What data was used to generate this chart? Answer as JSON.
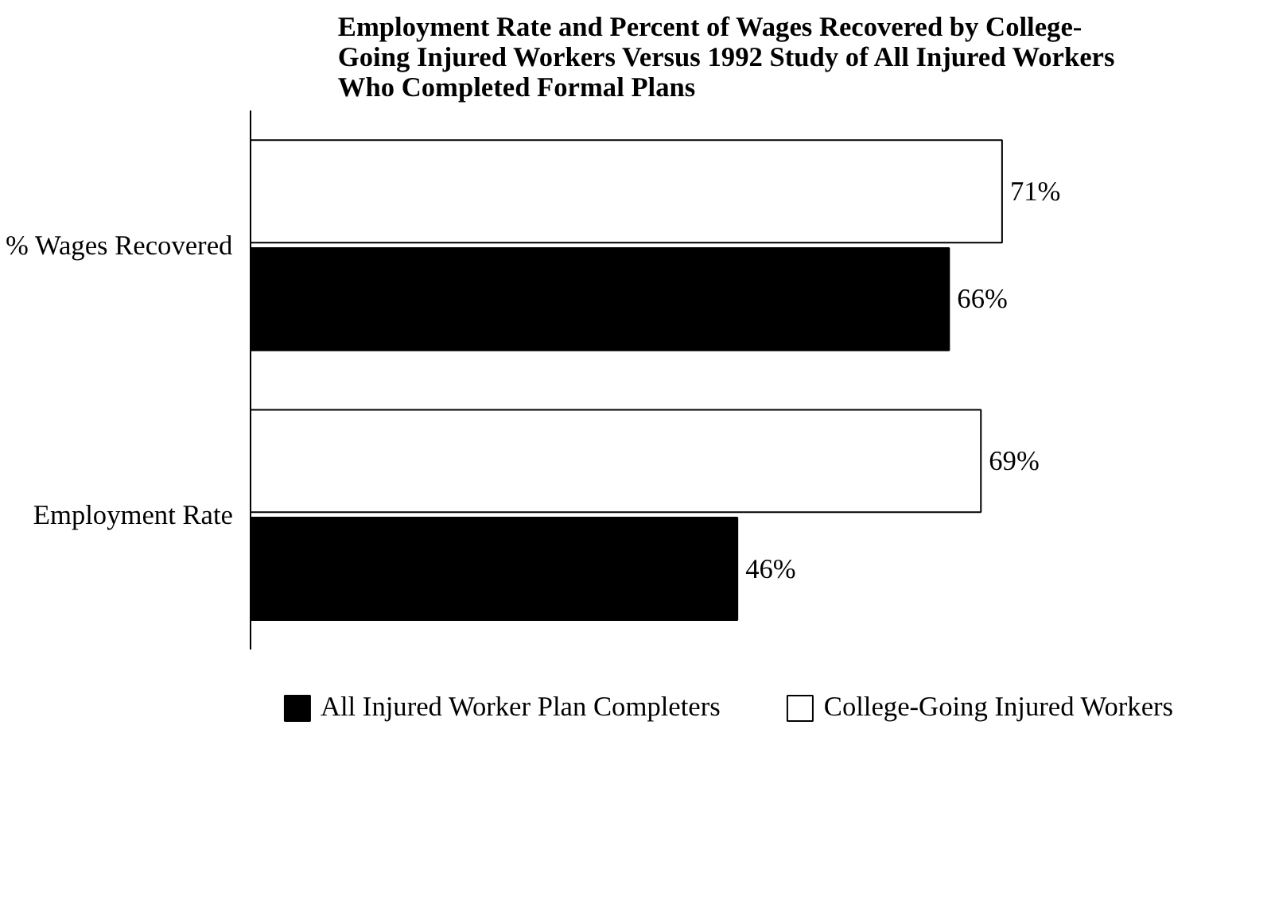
{
  "chart_data": {
    "type": "bar",
    "orientation": "horizontal",
    "title": "Employment Rate and Percent of Wages Recovered by College-Going Injured Workers Versus 1992 Study of All Injured Workers Who Completed Formal Plans",
    "categories": [
      "% Wages Recovered",
      "Employment Rate"
    ],
    "series": [
      {
        "name": "All Injured Worker Plan Completers",
        "color": "#000000",
        "values": [
          66,
          46
        ],
        "value_labels": [
          "66%",
          "46%"
        ]
      },
      {
        "name": "College-Going Injured Workers",
        "color": "#ffffff",
        "values": [
          71,
          69
        ],
        "value_labels": [
          "71%",
          "69%"
        ]
      }
    ],
    "legend": "bottom"
  }
}
